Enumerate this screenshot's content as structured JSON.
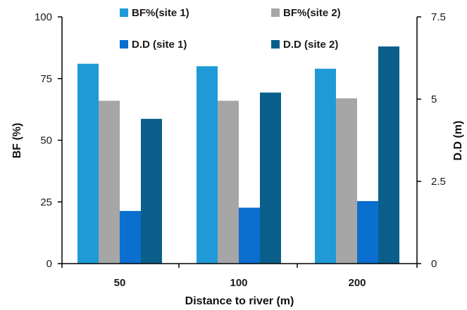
{
  "chart_data": {
    "type": "bar",
    "categories": [
      "50",
      "100",
      "200"
    ],
    "xlabel": "Distance to river (m)",
    "ylabel_left": "BF (%)",
    "ylabel_right": "D.D (m)",
    "ylim_left": [
      0,
      100
    ],
    "ylim_right": [
      0,
      7.5
    ],
    "yticks_left": [
      "0",
      "25",
      "50",
      "75",
      "100"
    ],
    "yticks_right": [
      "0",
      "2.5",
      "5",
      "7.5"
    ],
    "grid": false,
    "legend_position": "top",
    "series": [
      {
        "name": "BF%(site 1)",
        "axis": "left",
        "color": "#1f9ad6",
        "values": [
          81,
          80,
          79
        ]
      },
      {
        "name": "BF%(site 2)",
        "axis": "left",
        "color": "#a6a6a6",
        "values": [
          66,
          66,
          67
        ]
      },
      {
        "name": "D.D (site 1)",
        "axis": "right",
        "color": "#0a6fce",
        "values": [
          1.6,
          1.7,
          1.9
        ]
      },
      {
        "name": "D.D (site 2)",
        "axis": "right",
        "color": "#0a5f8a",
        "values": [
          4.4,
          5.2,
          6.6
        ]
      }
    ]
  }
}
